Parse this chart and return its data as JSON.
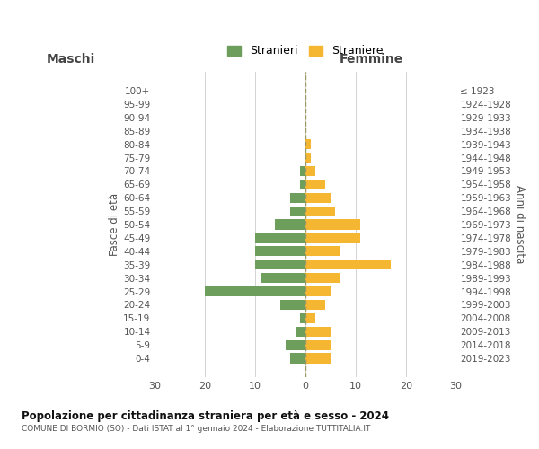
{
  "age_groups": [
    "0-4",
    "5-9",
    "10-14",
    "15-19",
    "20-24",
    "25-29",
    "30-34",
    "35-39",
    "40-44",
    "45-49",
    "50-54",
    "55-59",
    "60-64",
    "65-69",
    "70-74",
    "75-79",
    "80-84",
    "85-89",
    "90-94",
    "95-99",
    "100+"
  ],
  "birth_years": [
    "2019-2023",
    "2014-2018",
    "2009-2013",
    "2004-2008",
    "1999-2003",
    "1994-1998",
    "1989-1993",
    "1984-1988",
    "1979-1983",
    "1974-1978",
    "1969-1973",
    "1964-1968",
    "1959-1963",
    "1954-1958",
    "1949-1953",
    "1944-1948",
    "1939-1943",
    "1934-1938",
    "1929-1933",
    "1924-1928",
    "≤ 1923"
  ],
  "maschi": [
    3,
    4,
    2,
    1,
    5,
    20,
    9,
    10,
    10,
    10,
    6,
    3,
    3,
    1,
    1,
    0,
    0,
    0,
    0,
    0,
    0
  ],
  "femmine": [
    5,
    5,
    5,
    2,
    4,
    5,
    7,
    17,
    7,
    11,
    11,
    6,
    5,
    4,
    2,
    1,
    1,
    0,
    0,
    0,
    0
  ],
  "color_maschi": "#6d9e5c",
  "color_femmine": "#f5b731",
  "background_color": "#ffffff",
  "grid_color": "#cccccc",
  "title": "Popolazione per cittadinanza straniera per età e sesso - 2024",
  "subtitle": "COMUNE DI BORMIO (SO) - Dati ISTAT al 1° gennaio 2024 - Elaborazione TUTTITALIA.IT",
  "legend_maschi": "Stranieri",
  "legend_femmine": "Straniere",
  "xlabel_left": "Maschi",
  "xlabel_right": "Femmine",
  "ylabel_left": "Fasce di età",
  "ylabel_right": "Anni di nascita",
  "xlim": 30,
  "dashed_line_color": "#999966"
}
